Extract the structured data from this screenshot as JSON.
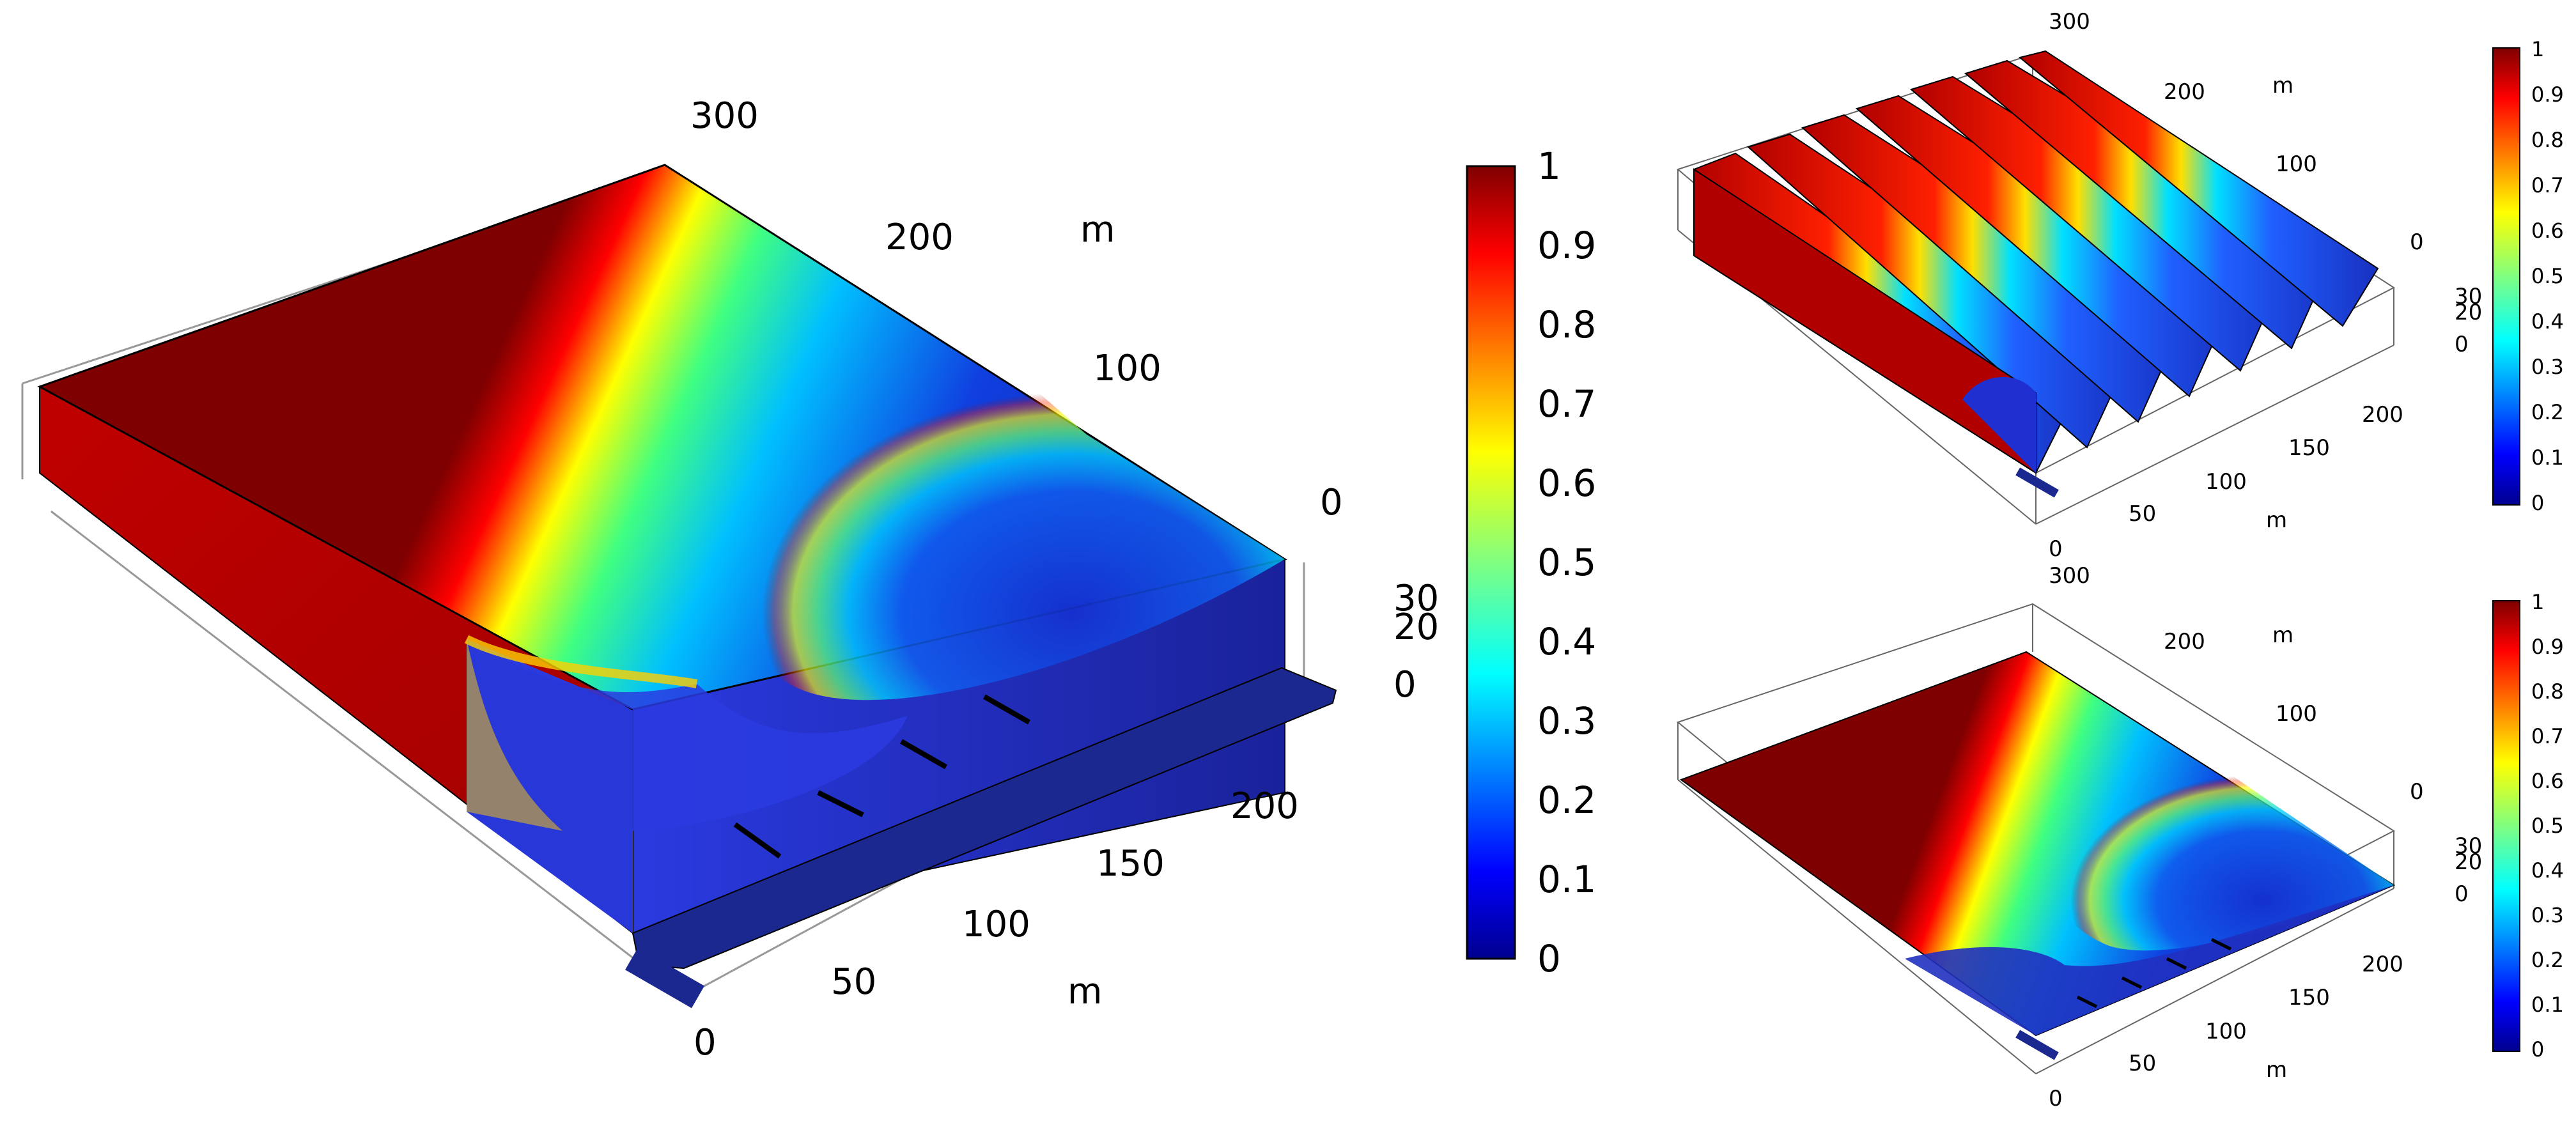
{
  "main_view": {
    "axis_unit_label": "m",
    "y_ticks": [
      "300",
      "200",
      "100",
      "0"
    ],
    "x_ticks": [
      "0",
      "50",
      "100",
      "150",
      "200"
    ],
    "z_ticks": [
      "30",
      "20",
      "0"
    ]
  },
  "top_right_view": {
    "axis_unit_label": "m",
    "y_ticks": [
      "300",
      "200",
      "100",
      "0"
    ],
    "x_ticks": [
      "0",
      "50",
      "100",
      "150",
      "200"
    ],
    "z_ticks": [
      "30",
      "20",
      "0"
    ]
  },
  "bottom_right_view": {
    "axis_unit_label": "m",
    "y_ticks": [
      "300",
      "200",
      "100",
      "0"
    ],
    "x_ticks": [
      "0",
      "50",
      "100",
      "150",
      "200"
    ],
    "z_ticks": [
      "30",
      "20",
      "0"
    ]
  },
  "colorbar": {
    "ticks": [
      "1",
      "0.9",
      "0.8",
      "0.7",
      "0.6",
      "0.5",
      "0.4",
      "0.3",
      "0.2",
      "0.1",
      "0"
    ],
    "colormap": [
      "#7f0000",
      "#ff0000",
      "#ff8000",
      "#ffff00",
      "#80ff80",
      "#00ffff",
      "#0080ff",
      "#0000ff",
      "#00008f"
    ]
  }
}
